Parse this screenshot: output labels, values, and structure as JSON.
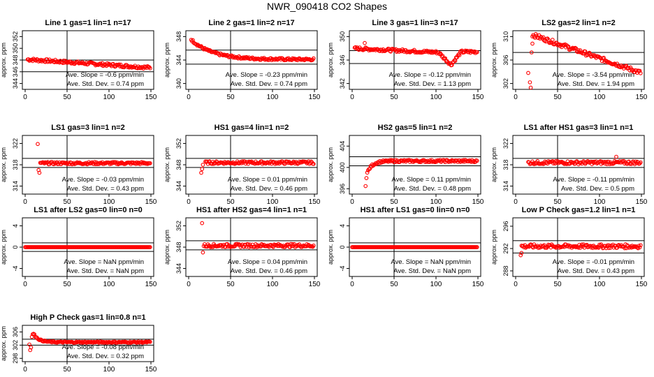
{
  "page": {
    "title": "NWR_090418  CO2 Shapes"
  },
  "chart_data": [
    {
      "type": "scatter",
      "title": "Line 1 gas=1 lin=1 n=17",
      "ylabel": "approx. ppm",
      "xlim": [
        0,
        150
      ],
      "ylim": [
        343,
        353
      ],
      "xticks": [
        0,
        50,
        100,
        150
      ],
      "yticks": [
        344,
        346,
        348,
        350,
        352
      ],
      "vline": 50,
      "hlines": [
        348.0,
        346.0
      ],
      "stats": {
        "slope": "-0.6",
        "stddev": "0.74"
      },
      "shape": {
        "kind": "linear",
        "start": 348.1,
        "end": 346.7,
        "noise": 0.25,
        "spikes": []
      }
    },
    {
      "type": "scatter",
      "title": "Line 2 gas=1 lin=2 n=17",
      "ylabel": "approx. ppm",
      "xlim": [
        0,
        150
      ],
      "ylim": [
        339,
        349
      ],
      "xticks": [
        0,
        50,
        100,
        150
      ],
      "yticks": [
        340,
        344,
        348
      ],
      "vline": 50,
      "hlines": [
        345.7,
        343.3
      ],
      "stats": {
        "slope": "-0.23",
        "stddev": "0.74"
      },
      "shape": {
        "kind": "decay",
        "start": 347.5,
        "end": 344.1,
        "tau": 25,
        "noise": 0.2,
        "spikes": []
      }
    },
    {
      "type": "scatter",
      "title": "Line 3 gas=1 lin=3 n=17",
      "ylabel": "approx. ppm",
      "xlim": [
        0,
        150
      ],
      "ylim": [
        341,
        351
      ],
      "xticks": [
        0,
        50,
        100,
        150
      ],
      "yticks": [
        342,
        346,
        350
      ],
      "vline": 50,
      "hlines": [
        347.6,
        345.4
      ],
      "stats": {
        "slope": "-0.12",
        "stddev": "1.13"
      },
      "shape": {
        "kind": "dip",
        "start": 348.0,
        "end": 347.0,
        "dipAt": 118,
        "dipTo": 345.2,
        "recoverTo": 347.4,
        "noise": 0.25,
        "spikes": [
          [
            15,
            348.9
          ]
        ]
      }
    },
    {
      "type": "scatter",
      "title": "LS2 gas=2 lin=1 n=2",
      "ylabel": "approx. ppm",
      "xlim": [
        0,
        150
      ],
      "ylim": [
        301,
        311
      ],
      "xticks": [
        0,
        50,
        100,
        150
      ],
      "yticks": [
        302,
        306,
        310
      ],
      "vline": 50,
      "hlines": [
        307.3,
        305.3
      ],
      "stats": {
        "slope": "-3.54",
        "stddev": "1.94"
      },
      "shape": {
        "kind": "linear",
        "start": 310.3,
        "end": 303.8,
        "from": 20,
        "noise": 0.35,
        "spikes": [
          [
            15,
            303.8
          ],
          [
            17,
            302.2
          ],
          [
            18,
            301.3
          ],
          [
            19,
            307.3
          ],
          [
            20,
            308.8
          ]
        ]
      }
    },
    {
      "type": "scatter",
      "title": "LS1 gas=3 lin=1 n=2",
      "ylabel": "approx. ppm",
      "xlim": [
        0,
        150
      ],
      "ylim": [
        312.5,
        323.5
      ],
      "xticks": [
        0,
        50,
        100,
        150
      ],
      "yticks": [
        314,
        318,
        322
      ],
      "vline": 50,
      "hlines": [
        319.2,
        317.5
      ],
      "stats": {
        "slope": "-0.03",
        "stddev": "0.43"
      },
      "shape": {
        "kind": "flat",
        "value": 318.3,
        "from": 18,
        "noise": 0.22,
        "spikes": [
          [
            15,
            321.9
          ],
          [
            16,
            317.0
          ],
          [
            17,
            316.5
          ]
        ]
      }
    },
    {
      "type": "scatter",
      "title": "HS1 gas=4 lin=1 n=2",
      "ylabel": "approx. ppm",
      "xlim": [
        0,
        150
      ],
      "ylim": [
        342.5,
        353.5
      ],
      "xticks": [
        0,
        50,
        100,
        150
      ],
      "yticks": [
        344,
        348,
        352
      ],
      "vline": 50,
      "hlines": [
        349.2,
        347.5
      ],
      "stats": {
        "slope": "0.01",
        "stddev": "0.46"
      },
      "shape": {
        "kind": "flat",
        "value": 348.4,
        "from": 20,
        "noise": 0.25,
        "spikes": [
          [
            15,
            346.5
          ],
          [
            16,
            347.2
          ],
          [
            17,
            348.0
          ]
        ]
      }
    },
    {
      "type": "scatter",
      "title": "HS2 gas=5 lin=1 n=2",
      "ylabel": "approx. ppm",
      "xlim": [
        0,
        150
      ],
      "ylim": [
        395,
        406
      ],
      "xticks": [
        0,
        50,
        100,
        150
      ],
      "yticks": [
        396,
        400,
        404
      ],
      "vline": 50,
      "hlines": [
        402.0,
        400.3
      ],
      "stats": {
        "slope": "0.11",
        "stddev": "0.48"
      },
      "shape": {
        "kind": "decay",
        "start": 399.0,
        "end": 401.2,
        "tau": 6,
        "from": 18,
        "noise": 0.22,
        "spikes": [
          [
            16,
            396.5
          ],
          [
            17,
            398.0
          ]
        ]
      }
    },
    {
      "type": "scatter",
      "title": "LS1 after HS1 gas=3 lin=1 n=1",
      "ylabel": "approx. ppm",
      "xlim": [
        0,
        150
      ],
      "ylim": [
        312.5,
        323.5
      ],
      "xticks": [
        0,
        50,
        100,
        150
      ],
      "yticks": [
        314,
        318,
        322
      ],
      "vline": 50,
      "hlines": [
        319.2,
        317.5
      ],
      "stats": {
        "slope": "-0.11",
        "stddev": "0.5"
      },
      "shape": {
        "kind": "flat",
        "value": 318.4,
        "from": 15,
        "noise": 0.3,
        "spikes": [
          [
            120,
            319.5
          ]
        ]
      }
    },
    {
      "type": "scatter",
      "title": "LS1 after LS2 gas=0 lin=0 n=0",
      "ylabel": "approx. ppm",
      "xlim": [
        0,
        150
      ],
      "ylim": [
        -5.5,
        5.5
      ],
      "xticks": [
        0,
        50,
        100,
        150
      ],
      "yticks": [
        -4,
        0,
        4
      ],
      "vline": 50,
      "hlines": [
        0.8,
        -0.8
      ],
      "stats": {
        "slope": "NaN",
        "stddev": "NaN"
      },
      "shape": {
        "kind": "flat",
        "value": 0,
        "from": 0,
        "noise": 0,
        "spikes": []
      }
    },
    {
      "type": "scatter",
      "title": "HS1 after HS2 gas=4 lin=1 n=1",
      "ylabel": "approx. ppm",
      "xlim": [
        0,
        150
      ],
      "ylim": [
        342.5,
        353.5
      ],
      "xticks": [
        0,
        50,
        100,
        150
      ],
      "yticks": [
        344,
        348,
        352
      ],
      "vline": 50,
      "hlines": [
        349.2,
        347.5
      ],
      "stats": {
        "slope": "0.04",
        "stddev": "0.46"
      },
      "shape": {
        "kind": "flat",
        "value": 348.3,
        "from": 18,
        "noise": 0.3,
        "spikes": [
          [
            16,
            352.5
          ],
          [
            17,
            347.0
          ]
        ]
      }
    },
    {
      "type": "scatter",
      "title": "HS1 after LS1 gas=0 lin=0 n=0",
      "ylabel": "approx. ppm",
      "xlim": [
        0,
        150
      ],
      "ylim": [
        -5.5,
        5.5
      ],
      "xticks": [
        0,
        50,
        100,
        150
      ],
      "yticks": [
        -4,
        0,
        4
      ],
      "vline": 50,
      "hlines": [
        0.8,
        -0.8
      ],
      "stats": {
        "slope": "NaN",
        "stddev": "NaN"
      },
      "shape": {
        "kind": "flat",
        "value": 0,
        "from": 0,
        "noise": 0,
        "spikes": []
      }
    },
    {
      "type": "scatter",
      "title": "Low P Check gas=1.2 lin=1 n=1",
      "ylabel": "approx. ppm",
      "xlim": [
        0,
        150
      ],
      "ylim": [
        287,
        297.5
      ],
      "xticks": [
        0,
        50,
        100,
        150
      ],
      "yticks": [
        288,
        292,
        296
      ],
      "vline": 50,
      "hlines": [
        293.4,
        291.2
      ],
      "stats": {
        "slope": "-0.01",
        "stddev": "0.43"
      },
      "shape": {
        "kind": "flat",
        "value": 292.4,
        "from": 7,
        "noise": 0.35,
        "spikes": [
          [
            6,
            290.8
          ],
          [
            7,
            291.2
          ]
        ]
      }
    },
    {
      "type": "scatter",
      "title": "High P Check gas=1 lin=0.8 n=1",
      "ylabel": "approx. ppm",
      "xlim": [
        0,
        150
      ],
      "ylim": [
        297,
        308
      ],
      "xticks": [
        0,
        50,
        100,
        150
      ],
      "yticks": [
        298,
        302,
        306
      ],
      "vline": 50,
      "hlines": [
        303.8,
        302.0
      ],
      "stats": {
        "slope": "-0.08",
        "stddev": "0.32"
      },
      "shape": {
        "kind": "decay",
        "start": 305.5,
        "end": 302.9,
        "tau": 6,
        "from": 10,
        "noise": 0.2,
        "spikes": [
          [
            5,
            302.2
          ],
          [
            6,
            300.5
          ],
          [
            7,
            301.3
          ],
          [
            8,
            304.5
          ],
          [
            9,
            305.3
          ]
        ]
      }
    }
  ],
  "labels": {
    "slope_prefix": "Ave. Slope = ",
    "slope_unit": " ppm/min",
    "stddev_prefix": "Ave. Std. Dev. = ",
    "stddev_unit": " ppm"
  }
}
